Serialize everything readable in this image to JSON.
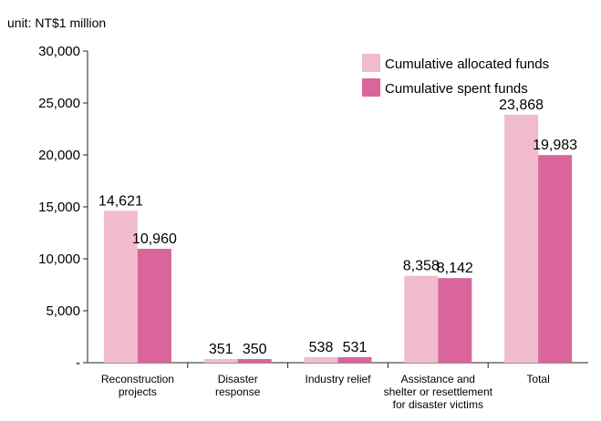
{
  "unit_label": "unit: NT$1 million",
  "legend": [
    {
      "label": "Cumulative allocated funds",
      "color": "#f0bccd"
    },
    {
      "label": "Cumulative spent funds",
      "color": "#d9659a"
    }
  ],
  "chart_data": {
    "type": "bar",
    "categories": [
      [
        "Reconstruction",
        "projects"
      ],
      [
        "Disaster",
        "response"
      ],
      [
        "Industry relief"
      ],
      [
        "Assistance and",
        "shelter or resettlement",
        "for disaster victims"
      ],
      [
        "Total"
      ]
    ],
    "series": [
      {
        "name": "Cumulative allocated funds",
        "color": "#f0bccd",
        "values": [
          14621,
          351,
          538,
          8358,
          23868
        ],
        "labels": [
          "14,621",
          "351",
          "538",
          "8,358",
          "23,868"
        ]
      },
      {
        "name": "Cumulative spent funds",
        "color": "#d9659a",
        "values": [
          10960,
          350,
          531,
          8142,
          19983
        ],
        "labels": [
          "10,960",
          "350",
          "531",
          "8,142",
          "19,983"
        ]
      }
    ],
    "y_ticks": [
      "-",
      "5,000",
      "10,000",
      "15,000",
      "20,000",
      "25,000",
      "30,000"
    ],
    "ylim": [
      0,
      30000
    ],
    "grid": false,
    "legend_position": "top-right"
  }
}
